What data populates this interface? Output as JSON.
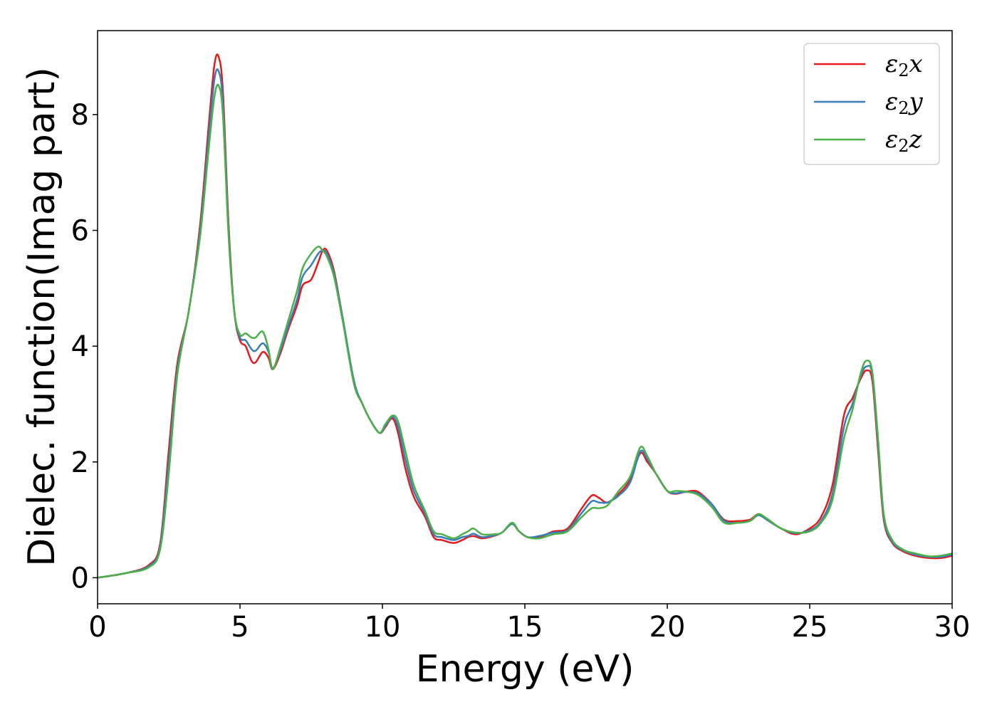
{
  "chart_data": {
    "type": "line",
    "title": "",
    "xlabel": "Energy (eV)",
    "ylabel": "Dielec. function(Imag part)",
    "xlim": [
      0,
      30
    ],
    "ylim": [
      -0.45,
      9.45
    ],
    "xticks": [
      0,
      5,
      10,
      15,
      20,
      25,
      30
    ],
    "yticks": [
      0,
      2,
      4,
      6,
      8
    ],
    "grid": false,
    "legend_position": "top-right",
    "series": [
      {
        "name": "ε",
        "sub": "2",
        "suffix": "x",
        "color": "#e41a1c",
        "x": [
          0,
          1,
          1.8,
          2.2,
          2.5,
          2.8,
          3.2,
          3.6,
          3.9,
          4.1,
          4.25,
          4.4,
          4.6,
          4.8,
          5.0,
          5.2,
          5.4,
          5.55,
          5.8,
          6.0,
          6.15,
          6.4,
          6.7,
          7.0,
          7.2,
          7.5,
          7.75,
          7.9,
          8.05,
          8.3,
          8.6,
          9.0,
          9.3,
          9.6,
          9.9,
          10.1,
          10.35,
          10.55,
          10.8,
          11.1,
          11.5,
          11.8,
          12.1,
          12.5,
          12.8,
          13.0,
          13.2,
          13.5,
          13.9,
          14.2,
          14.55,
          14.8,
          15.1,
          15.5,
          16.0,
          16.5,
          17.0,
          17.35,
          17.6,
          17.9,
          18.3,
          18.7,
          19.05,
          19.3,
          19.6,
          20.0,
          20.3,
          20.6,
          21.0,
          21.3,
          21.6,
          22.0,
          22.5,
          22.9,
          23.2,
          23.5,
          24.0,
          24.5,
          25.0,
          25.4,
          25.8,
          26.2,
          26.5,
          26.8,
          27.0,
          27.2,
          27.4,
          27.6,
          27.9,
          28.3,
          28.7,
          29.2,
          29.6,
          30
        ],
        "y": [
          0,
          0.08,
          0.22,
          0.6,
          2.2,
          3.7,
          4.6,
          6.1,
          7.8,
          8.85,
          9.0,
          8.4,
          6.1,
          4.6,
          4.1,
          4.0,
          3.75,
          3.72,
          3.9,
          3.8,
          3.6,
          3.85,
          4.3,
          4.7,
          5.05,
          5.15,
          5.45,
          5.65,
          5.65,
          5.3,
          4.5,
          3.4,
          3.0,
          2.7,
          2.5,
          2.6,
          2.75,
          2.5,
          1.9,
          1.4,
          1.05,
          0.7,
          0.65,
          0.6,
          0.65,
          0.7,
          0.72,
          0.68,
          0.72,
          0.78,
          0.93,
          0.8,
          0.7,
          0.7,
          0.8,
          0.85,
          1.2,
          1.42,
          1.38,
          1.3,
          1.45,
          1.7,
          2.15,
          2.0,
          1.8,
          1.5,
          1.45,
          1.48,
          1.5,
          1.4,
          1.25,
          1.0,
          0.98,
          1.0,
          1.1,
          1.0,
          0.85,
          0.75,
          0.85,
          1.05,
          1.6,
          2.8,
          3.1,
          3.45,
          3.58,
          3.4,
          2.2,
          1.0,
          0.6,
          0.45,
          0.38,
          0.34,
          0.34,
          0.38
        ]
      },
      {
        "name": "ε",
        "sub": "2",
        "suffix": "y",
        "color": "#377eb8",
        "x": [
          0,
          1,
          1.8,
          2.2,
          2.5,
          2.8,
          3.2,
          3.6,
          3.9,
          4.1,
          4.25,
          4.4,
          4.6,
          4.8,
          5.0,
          5.2,
          5.4,
          5.55,
          5.8,
          6.0,
          6.15,
          6.4,
          6.7,
          7.0,
          7.2,
          7.5,
          7.75,
          7.9,
          8.05,
          8.3,
          8.6,
          9.0,
          9.3,
          9.6,
          9.9,
          10.1,
          10.35,
          10.55,
          10.8,
          11.1,
          11.5,
          11.8,
          12.1,
          12.5,
          12.8,
          13.0,
          13.2,
          13.5,
          13.9,
          14.2,
          14.55,
          14.8,
          15.1,
          15.5,
          16.0,
          16.5,
          17.0,
          17.35,
          17.6,
          17.9,
          18.3,
          18.7,
          19.05,
          19.3,
          19.6,
          20.0,
          20.3,
          20.6,
          21.0,
          21.3,
          21.6,
          22.0,
          22.5,
          22.9,
          23.2,
          23.5,
          24.0,
          24.5,
          25.0,
          25.4,
          25.8,
          26.2,
          26.5,
          26.8,
          27.0,
          27.2,
          27.4,
          27.6,
          27.9,
          28.3,
          28.7,
          29.2,
          29.6,
          30
        ],
        "y": [
          0,
          0.08,
          0.2,
          0.55,
          2.0,
          3.6,
          4.6,
          6.0,
          7.6,
          8.6,
          8.75,
          8.2,
          6.0,
          4.6,
          4.15,
          4.1,
          3.95,
          3.92,
          4.05,
          3.9,
          3.62,
          3.9,
          4.35,
          4.8,
          5.2,
          5.4,
          5.6,
          5.65,
          5.6,
          5.25,
          4.5,
          3.4,
          3.0,
          2.7,
          2.5,
          2.62,
          2.78,
          2.6,
          2.05,
          1.5,
          1.1,
          0.75,
          0.7,
          0.65,
          0.7,
          0.72,
          0.76,
          0.7,
          0.73,
          0.78,
          0.93,
          0.8,
          0.7,
          0.72,
          0.78,
          0.82,
          1.12,
          1.32,
          1.3,
          1.3,
          1.42,
          1.65,
          2.18,
          2.05,
          1.8,
          1.5,
          1.46,
          1.48,
          1.47,
          1.38,
          1.25,
          0.98,
          0.95,
          0.98,
          1.08,
          1.0,
          0.85,
          0.77,
          0.82,
          0.98,
          1.45,
          2.6,
          3.0,
          3.5,
          3.65,
          3.5,
          2.3,
          1.05,
          0.62,
          0.47,
          0.4,
          0.36,
          0.36,
          0.4
        ]
      },
      {
        "name": "ε",
        "sub": "2",
        "suffix": "z",
        "color": "#4daf4a",
        "x": [
          0,
          1,
          1.8,
          2.2,
          2.5,
          2.8,
          3.2,
          3.6,
          3.9,
          4.1,
          4.25,
          4.4,
          4.6,
          4.8,
          5.0,
          5.2,
          5.4,
          5.55,
          5.8,
          6.0,
          6.15,
          6.4,
          6.7,
          7.0,
          7.2,
          7.5,
          7.75,
          7.9,
          8.05,
          8.3,
          8.6,
          9.0,
          9.3,
          9.6,
          9.9,
          10.1,
          10.35,
          10.55,
          10.8,
          11.1,
          11.5,
          11.8,
          12.1,
          12.5,
          12.8,
          13.0,
          13.2,
          13.5,
          13.9,
          14.2,
          14.55,
          14.8,
          15.1,
          15.5,
          16.0,
          16.5,
          17.0,
          17.35,
          17.6,
          17.9,
          18.3,
          18.7,
          19.05,
          19.3,
          19.6,
          20.0,
          20.3,
          20.6,
          21.0,
          21.3,
          21.6,
          22.0,
          22.5,
          22.9,
          23.2,
          23.5,
          24.0,
          24.5,
          25.0,
          25.4,
          25.8,
          26.2,
          26.5,
          26.8,
          27.0,
          27.2,
          27.4,
          27.6,
          27.9,
          28.3,
          28.7,
          29.2,
          29.6,
          30
        ],
        "y": [
          0,
          0.08,
          0.18,
          0.5,
          1.8,
          3.5,
          4.6,
          5.9,
          7.4,
          8.3,
          8.5,
          8.0,
          5.9,
          4.6,
          4.2,
          4.22,
          4.15,
          4.15,
          4.25,
          3.95,
          3.6,
          3.95,
          4.45,
          4.95,
          5.35,
          5.6,
          5.72,
          5.65,
          5.55,
          5.2,
          4.45,
          3.35,
          3.0,
          2.7,
          2.5,
          2.65,
          2.8,
          2.7,
          2.2,
          1.6,
          1.15,
          0.8,
          0.75,
          0.68,
          0.75,
          0.8,
          0.85,
          0.75,
          0.75,
          0.78,
          0.95,
          0.8,
          0.7,
          0.68,
          0.75,
          0.8,
          1.05,
          1.2,
          1.2,
          1.25,
          1.5,
          1.75,
          2.25,
          2.1,
          1.8,
          1.5,
          1.5,
          1.49,
          1.45,
          1.35,
          1.2,
          0.95,
          0.95,
          0.98,
          1.1,
          1.02,
          0.85,
          0.78,
          0.8,
          0.95,
          1.35,
          2.4,
          2.9,
          3.55,
          3.75,
          3.55,
          2.4,
          1.1,
          0.65,
          0.48,
          0.42,
          0.37,
          0.38,
          0.42
        ]
      }
    ]
  }
}
